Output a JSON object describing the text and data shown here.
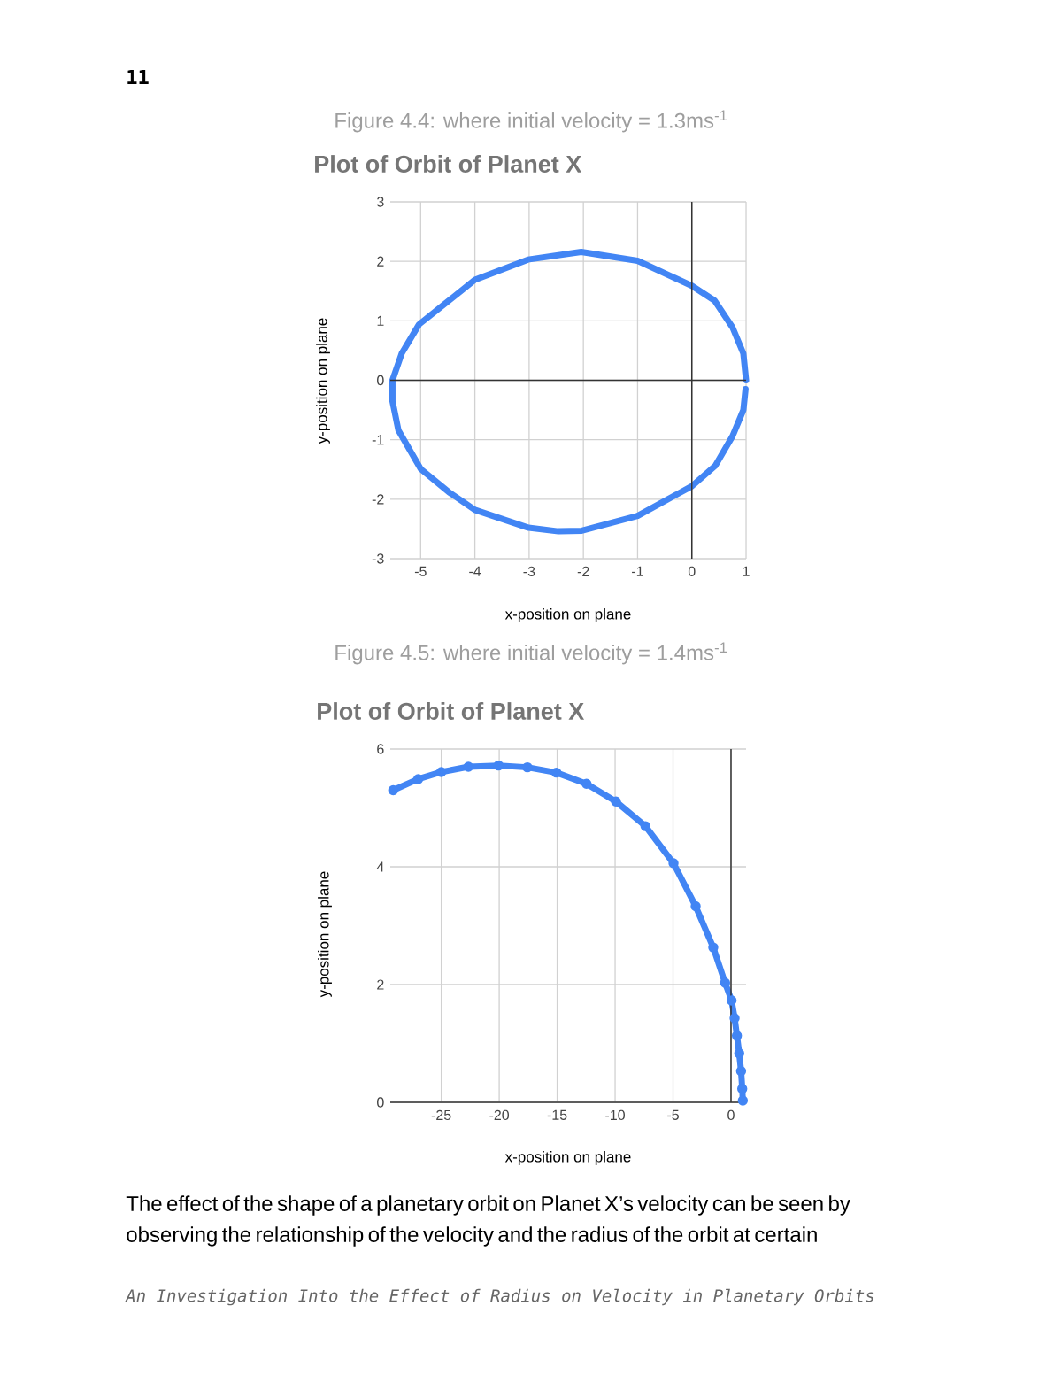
{
  "chart_data": [
    {
      "type": "line",
      "title": "Plot of Orbit of Planet X",
      "xlabel": "x-position on plane",
      "ylabel": "y-position on plane",
      "annotations": [
        "11",
        "Figure 4.4: where initial velocity = 1.3ms$^{-1}$"
      ],
      "x": [
        1.0,
        0.95,
        0.75,
        0.42,
        0.0,
        -1.0,
        -2.04,
        -3.02,
        -4.0,
        -4.48,
        -5.03,
        -5.35,
        -5.52,
        -5.52,
        -5.41,
        -5.0,
        -4.48,
        -4.0,
        -3.01,
        -2.46,
        -2.03,
        -1.0,
        0.0,
        0.43,
        0.75,
        0.95,
        0.99
      ],
      "series": [
        {
          "color": "#4285f4",
          "values": [
            0.0,
            0.45,
            0.89,
            1.34,
            1.59,
            2.01,
            2.16,
            2.03,
            1.69,
            1.34,
            0.94,
            0.45,
            0.0,
            -0.35,
            -0.84,
            -1.49,
            -1.88,
            -2.18,
            -2.48,
            -2.54,
            -2.53,
            -2.28,
            -1.78,
            -1.44,
            -0.94,
            -0.5,
            -0.15
          ]
        }
      ],
      "xlim": [
        -5.56,
        1
      ],
      "ylim": [
        -3,
        3
      ],
      "xticks": [
        -5,
        -4,
        -3,
        -2,
        -1,
        0,
        1
      ],
      "yticks": [
        -3,
        -2,
        -1,
        0,
        1,
        2,
        3
      ],
      "grid": true,
      "marker": "none",
      "line_style": "solid"
    },
    {
      "type": "line",
      "title": "Plot of Orbit of Planet X",
      "xlabel": "x-position on plane",
      "ylabel": "y-position on plane",
      "annotations": [
        "Figure 4.5: where initial velocity = 1.4ms$^{-1}$",
        "The effect of the shape of a planetary orbit on Planet X’s velocity can be seen by observing the relationship of the velocity and the radius of the orbit at certain",
        "An Investigation Into the Effect of Radius on Velocity in Planetary Orbits"
      ],
      "x": [
        -29.15,
        -26.99,
        -25.0,
        -22.66,
        -20.06,
        -17.57,
        -15.07,
        -12.47,
        -9.93,
        -7.38,
        -4.96,
        -3.05,
        -1.53,
        -0.51,
        0.05,
        0.31,
        0.51,
        0.71,
        0.87,
        0.97,
        1.02
      ],
      "series": [
        {
          "color": "#4285f4",
          "values": [
            5.3,
            5.49,
            5.61,
            5.7,
            5.72,
            5.69,
            5.6,
            5.41,
            5.11,
            4.69,
            4.06,
            3.33,
            2.63,
            2.03,
            1.73,
            1.43,
            1.13,
            0.83,
            0.53,
            0.23,
            0.03
          ]
        }
      ],
      "xlim": [
        -29.4,
        1.3
      ],
      "ylim": [
        0,
        6
      ],
      "xticks": [
        -25,
        -20,
        -15,
        -10,
        -5,
        0
      ],
      "yticks": [
        0,
        2,
        4,
        6
      ],
      "grid": true,
      "marker": "circle",
      "line_style": "solid"
    }
  ]
}
